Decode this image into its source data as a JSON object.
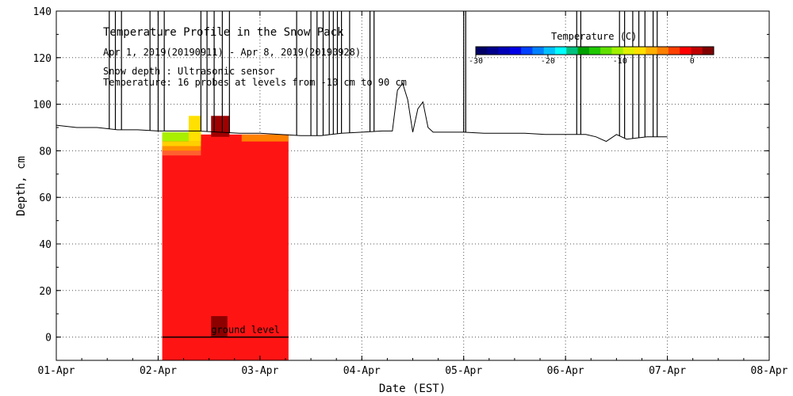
{
  "chart_data": {
    "type": "heatmap",
    "title": "Temperature Profile in the Snow Pack",
    "subtitle": "Apr  1, 2019(20190911) - Apr  8, 2019(20190928)",
    "info_lines": [
      "Snow depth : Ultrasonic sensor",
      "Temperature: 16 probes at levels from -10 cm to 90 cm"
    ],
    "xlabel": "Date (EST)",
    "ylabel": "Depth, cm",
    "x_ticks": [
      "01-Apr",
      "02-Apr",
      "03-Apr",
      "04-Apr",
      "05-Apr",
      "06-Apr",
      "07-Apr",
      "08-Apr"
    ],
    "xlim_days": [
      0,
      7
    ],
    "ylim": [
      -10,
      140
    ],
    "y_ticks": [
      0,
      20,
      40,
      60,
      80,
      100,
      120,
      140
    ],
    "grid": true,
    "ground_level_label": "ground level",
    "ground_level_cm": 0,
    "colorbar": {
      "title": "Temperature (C)",
      "min": -30,
      "max": 3,
      "tick_values": [
        -30,
        -20,
        -10,
        0
      ],
      "tick_labels": [
        "-30",
        "-20",
        "-10",
        "0"
      ],
      "colors": [
        "#000066",
        "#00008c",
        "#0000b8",
        "#0000e6",
        "#0040ff",
        "#0080ff",
        "#00c0ff",
        "#00ffff",
        "#00c080",
        "#00a000",
        "#20c800",
        "#60e000",
        "#a0f000",
        "#e0f000",
        "#ffe000",
        "#ffb000",
        "#ff8000",
        "#ff4000",
        "#ff0000",
        "#c00000",
        "#800000"
      ]
    },
    "temperature_field": {
      "x_start": 1.04,
      "x_end": 2.28,
      "depth_top": 87,
      "base_color": "#ff1414",
      "patches": [
        {
          "x0": 1.04,
          "x1": 1.42,
          "y0": 84,
          "y1": 88,
          "color": "#a8f000"
        },
        {
          "x0": 1.04,
          "x1": 1.42,
          "y0": 82,
          "y1": 84,
          "color": "#ffd000"
        },
        {
          "x0": 1.04,
          "x1": 1.42,
          "y0": 80,
          "y1": 82,
          "color": "#ff9000"
        },
        {
          "x0": 1.04,
          "x1": 1.42,
          "y0": 78,
          "y1": 80,
          "color": "#ff6030"
        },
        {
          "x0": 1.3,
          "x1": 1.42,
          "y0": 84,
          "y1": 95,
          "color": "#ffe000"
        },
        {
          "x0": 1.52,
          "x1": 1.7,
          "y0": 86,
          "y1": 95,
          "color": "#a00000"
        },
        {
          "x0": 1.82,
          "x1": 2.28,
          "y0": 84,
          "y1": 87,
          "color": "#ff8000"
        },
        {
          "x0": 1.52,
          "x1": 1.68,
          "y0": 0,
          "y1": 9,
          "color": "#8c0000"
        }
      ]
    },
    "snow_depth_series": {
      "name": "Snow depth",
      "x_days": [
        0,
        0.2,
        0.4,
        0.6,
        0.8,
        1.0,
        1.2,
        1.4,
        1.6,
        1.8,
        2.0,
        2.2,
        2.4,
        2.6,
        2.8,
        3.0,
        3.2,
        3.3,
        3.35,
        3.4,
        3.45,
        3.5,
        3.55,
        3.6,
        3.65,
        3.7,
        3.8,
        4.0,
        4.2,
        4.4,
        4.6,
        4.8,
        5.0,
        5.2,
        5.3,
        5.4,
        5.5,
        5.6,
        5.8,
        6.0
      ],
      "depth_cm": [
        91,
        90,
        90,
        89,
        89,
        88.5,
        88.5,
        88.5,
        88,
        87.5,
        87.5,
        87,
        86.5,
        86.5,
        87.5,
        88,
        88.5,
        88.5,
        106,
        109,
        102,
        88,
        98,
        101,
        90,
        88,
        88,
        88,
        87.5,
        87.5,
        87.5,
        87,
        87,
        87,
        86,
        84,
        87,
        85,
        86,
        86
      ],
      "spikes_x_days": [
        0.52,
        0.58,
        0.64,
        0.92,
        1.0,
        1.06,
        1.42,
        1.48,
        1.55,
        1.63,
        1.7,
        2.36,
        2.5,
        2.56,
        2.62,
        2.68,
        2.72,
        2.76,
        2.8,
        2.88,
        3.08,
        3.12,
        4.0,
        4.02,
        5.11,
        5.15,
        5.53,
        5.58,
        5.66,
        5.72,
        5.78,
        5.86,
        5.9
      ],
      "spike_top_cm": 140
    }
  }
}
